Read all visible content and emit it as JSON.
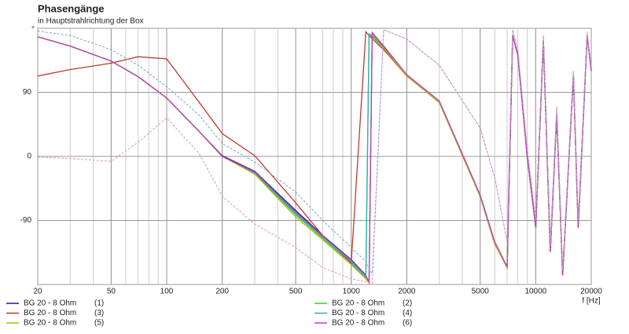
{
  "chart_data": {
    "type": "line",
    "title": "Phasengänge",
    "subtitle": "in Hauptstrahlrichtung der Box",
    "y_label": "°",
    "x_label": "f [Hz]",
    "log_x": true,
    "grid": true,
    "xlim": [
      20,
      20000
    ],
    "xticks": [
      20,
      50,
      100,
      200,
      500,
      1000,
      2000,
      5000,
      10000,
      20000
    ],
    "ylim": [
      -180,
      180
    ],
    "yticks": [
      -90,
      0,
      90
    ],
    "x": [
      20,
      30,
      50,
      70,
      100,
      150,
      200,
      300,
      500,
      700,
      1000,
      1200,
      1250,
      1300,
      1500,
      2000,
      3000,
      5000,
      6000,
      7000,
      7500,
      8000,
      9000,
      10000,
      11000,
      12000,
      13000,
      14000,
      16000,
      17000,
      19000,
      20000
    ],
    "series": [
      {
        "name": "BG 20 - 8 Ohm",
        "label": "(1)",
        "color": "#1c1c8a",
        "values": [
          168,
          155,
          134,
          112,
          82,
          35,
          1,
          -21,
          -76,
          -111,
          -145,
          -167,
          -178,
          173,
          153,
          113,
          76,
          -56,
          -123,
          -156,
          170,
          142,
          -1,
          -100,
          164,
          -134,
          60,
          -167,
          115,
          -100,
          170,
          120
        ]
      },
      {
        "name": "BG 20 - 8 Ohm",
        "label": "(2)",
        "color": "#33cc33",
        "values": [
          168,
          155,
          134,
          112,
          82,
          35,
          0,
          -24,
          -82,
          -115,
          -150,
          -172,
          170,
          168,
          152,
          113,
          76,
          -56,
          -123,
          -156,
          170,
          142,
          -1,
          -100,
          164,
          -134,
          60,
          -167,
          115,
          -100,
          170,
          120
        ]
      },
      {
        "name": "BG 20 - 8 Ohm",
        "label": "(3)",
        "color": "#c0392b",
        "values": [
          113,
          122,
          131,
          140,
          137,
          76,
          32,
          1,
          -65,
          -111,
          -150,
          175,
          170,
          165,
          150,
          113,
          76,
          -56,
          -123,
          -156,
          170,
          142,
          -1,
          -100,
          164,
          -134,
          60,
          -167,
          115,
          -100,
          170,
          120
        ]
      },
      {
        "name": "BG 20 - 8 Ohm",
        "label": "(4)",
        "color": "#22b5b5",
        "values": [
          168,
          155,
          134,
          112,
          82,
          35,
          0,
          -23,
          -80,
          -113,
          -148,
          -170,
          172,
          170,
          152,
          113,
          76,
          -56,
          -123,
          -156,
          170,
          142,
          -1,
          -100,
          164,
          -134,
          60,
          -167,
          115,
          -100,
          170,
          120
        ]
      },
      {
        "name": "BG 20 - 8 Ohm",
        "label": "(5)",
        "color": "#b8b800",
        "values": [
          168,
          155,
          134,
          112,
          82,
          35,
          0,
          -25,
          -85,
          -117,
          -152,
          -172,
          -178,
          172,
          152,
          113,
          76,
          -56,
          -123,
          -156,
          170,
          142,
          -1,
          -100,
          164,
          -134,
          60,
          -167,
          115,
          -100,
          170,
          120
        ]
      },
      {
        "name": "BG 20 - 8 Ohm",
        "label": "(6)",
        "color": "#c040c0",
        "values": [
          168,
          155,
          134,
          112,
          82,
          35,
          0,
          -22,
          -78,
          -112,
          -146,
          -168,
          -176,
          174,
          155,
          115,
          78,
          -54,
          -120,
          -155,
          170,
          142,
          -1,
          -100,
          164,
          -134,
          60,
          -167,
          115,
          -100,
          170,
          120
        ]
      },
      {
        "color": "#7aa0d8",
        "dashed": true,
        "values": [
          176,
          170,
          150,
          128,
          98,
          58,
          18,
          -8,
          -50,
          -90,
          -128,
          -148,
          -158,
          -165,
          178,
          165,
          128,
          40,
          -30,
          -120,
          178,
          150,
          10,
          -90,
          170,
          -125,
          70,
          -160,
          120,
          -90,
          175,
          125
        ]
      },
      {
        "color": "#e090c0",
        "dashed": true,
        "values": [
          -1,
          -3,
          -7,
          20,
          54,
          4,
          -56,
          -95,
          -128,
          -156,
          -172,
          -176,
          -178,
          -179,
          178,
          165,
          128,
          40,
          -30,
          -120,
          178,
          150,
          10,
          -90,
          170,
          -125,
          70,
          -160,
          120,
          -90,
          175,
          125
        ]
      }
    ]
  }
}
